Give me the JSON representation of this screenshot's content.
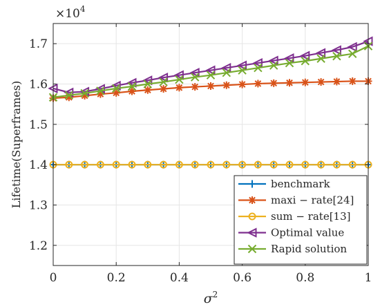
{
  "chart_data": {
    "type": "line",
    "title": "",
    "xlabel": "σ",
    "xlabel_superscript": "2",
    "ylabel": "Lifetime(Superframes)",
    "multiplier_base": "×10",
    "multiplier_exp": "4",
    "xlim": [
      0,
      1
    ],
    "ylim": [
      1.15,
      1.75
    ],
    "x_ticks": [
      0,
      0.2,
      0.4,
      0.6,
      0.8,
      1
    ],
    "x_tick_labels": [
      "0",
      "0.2",
      "0.4",
      "0.6",
      "0.8",
      "1"
    ],
    "y_ticks": [
      1.2,
      1.3,
      1.4,
      1.5,
      1.6,
      1.7
    ],
    "y_tick_labels": [
      "1.2",
      "1.3",
      "1.4",
      "1.5",
      "1.6",
      "1.7"
    ],
    "grid": true,
    "legend_position": "bottom-right",
    "x": [
      0,
      0.05,
      0.1,
      0.15,
      0.2,
      0.25,
      0.3,
      0.35,
      0.4,
      0.45,
      0.5,
      0.55,
      0.6,
      0.65,
      0.7,
      0.75,
      0.8,
      0.85,
      0.9,
      0.95,
      1
    ],
    "series": [
      {
        "name": "benchmark",
        "marker": "plus",
        "color": "#0072BD",
        "values": [
          1.4,
          1.4,
          1.4,
          1.4,
          1.4,
          1.4,
          1.4,
          1.4,
          1.4,
          1.4,
          1.4,
          1.4,
          1.4,
          1.4,
          1.4,
          1.4,
          1.4,
          1.4,
          1.4,
          1.4,
          1.4
        ]
      },
      {
        "name": "maxi − rate[24]",
        "marker": "asterisk",
        "color": "#D95319",
        "values": [
          1.565,
          1.567,
          1.571,
          1.575,
          1.578,
          1.582,
          1.585,
          1.588,
          1.591,
          1.593,
          1.595,
          1.597,
          1.599,
          1.601,
          1.602,
          1.603,
          1.604,
          1.605,
          1.606,
          1.607,
          1.607
        ]
      },
      {
        "name": "sum − rate[13]",
        "marker": "circle",
        "color": "#EDB120",
        "values": [
          1.4,
          1.4,
          1.4,
          1.4,
          1.4,
          1.4,
          1.4,
          1.4,
          1.4,
          1.4,
          1.4,
          1.4,
          1.4,
          1.4,
          1.4,
          1.4,
          1.4,
          1.4,
          1.4,
          1.4,
          1.4
        ]
      },
      {
        "name": "Optimal value",
        "marker": "triangle-left",
        "color": "#7E2F8E",
        "values": [
          1.589,
          1.579,
          1.581,
          1.588,
          1.596,
          1.603,
          1.609,
          1.616,
          1.622,
          1.628,
          1.634,
          1.64,
          1.646,
          1.652,
          1.658,
          1.664,
          1.67,
          1.677,
          1.684,
          1.692,
          1.706
        ]
      },
      {
        "name": "Rapid solution",
        "marker": "x",
        "color": "#77AC30",
        "values": [
          1.567,
          1.572,
          1.577,
          1.583,
          1.589,
          1.594,
          1.6,
          1.605,
          1.611,
          1.617,
          1.622,
          1.628,
          1.634,
          1.64,
          1.646,
          1.652,
          1.657,
          1.663,
          1.669,
          1.675,
          1.694
        ]
      }
    ]
  }
}
